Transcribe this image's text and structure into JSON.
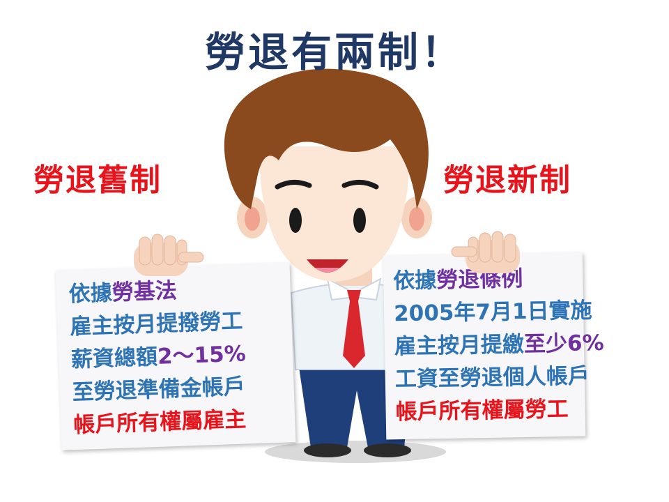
{
  "title": "勞退有兩制！",
  "colors": {
    "title": "#1f3864",
    "heading": "#e8141c",
    "blue": "#2e74b5",
    "purple": "#7030a0",
    "red": "#e8141c",
    "hair": "#8b4a1e",
    "skin": "#fce6d6",
    "suit": "#1f3f7a",
    "tie": "#d9272d"
  },
  "old_system": {
    "heading": "勞退舊制",
    "lines": [
      [
        {
          "text": "依據",
          "color": "blue"
        },
        {
          "text": "勞基法",
          "color": "purple"
        }
      ],
      [
        {
          "text": "雇主按月提撥勞工",
          "color": "blue"
        }
      ],
      [
        {
          "text": "薪資總額",
          "color": "blue"
        },
        {
          "text": "2～15%",
          "color": "purple"
        }
      ],
      [
        {
          "text": "至勞退準備金帳戶",
          "color": "blue"
        }
      ],
      [
        {
          "text": "帳戶所有權屬雇主",
          "color": "red"
        }
      ]
    ]
  },
  "new_system": {
    "heading": "勞退新制",
    "lines": [
      [
        {
          "text": "依據",
          "color": "blue"
        },
        {
          "text": "勞退條例",
          "color": "purple"
        }
      ],
      [
        {
          "text": "2005年7月1日實施",
          "color": "blue"
        }
      ],
      [
        {
          "text": "雇主按月提繳",
          "color": "blue"
        },
        {
          "text": "至少6%",
          "color": "purple"
        }
      ],
      [
        {
          "text": "工資至勞退個人帳戶",
          "color": "blue"
        }
      ],
      [
        {
          "text": "帳戶所有權屬勞工",
          "color": "red"
        }
      ]
    ]
  }
}
